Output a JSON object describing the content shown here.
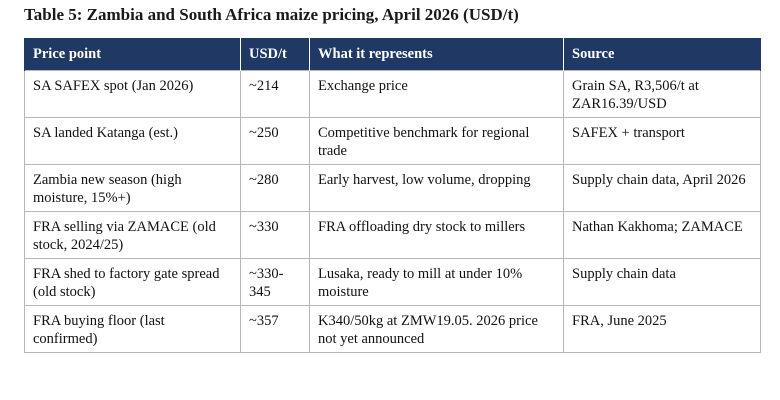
{
  "caption": "Table 5: Zambia and South Africa maize pricing, April 2026 (USD/t)",
  "table": {
    "headers": [
      "Price point",
      "USD/t",
      "What it represents",
      "Source"
    ],
    "rows": [
      [
        "SA SAFEX spot (Jan 2026)",
        "~214",
        "Exchange price",
        "Grain SA, R3,506/t at ZAR16.39/USD"
      ],
      [
        "SA landed Katanga (est.)",
        "~250",
        "Competitive benchmark for regional trade",
        "SAFEX + transport"
      ],
      [
        "Zambia new season (high moisture, 15%+)",
        "~280",
        "Early harvest, low volume, dropping",
        "Supply chain data, April 2026"
      ],
      [
        "FRA selling via ZAMACE (old stock, 2024/25)",
        "~330",
        "FRA offloading dry stock to millers",
        "Nathan Kakhoma; ZAMACE"
      ],
      [
        "FRA shed to factory gate spread (old stock)",
        "~330-345",
        "Lusaka, ready to mill at under 10% moisture",
        "Supply chain data"
      ],
      [
        "FRA buying floor (last confirmed)",
        "~357",
        "K340/50kg at ZMW19.05. 2026 price not yet announced",
        "FRA, June 2025"
      ]
    ]
  }
}
